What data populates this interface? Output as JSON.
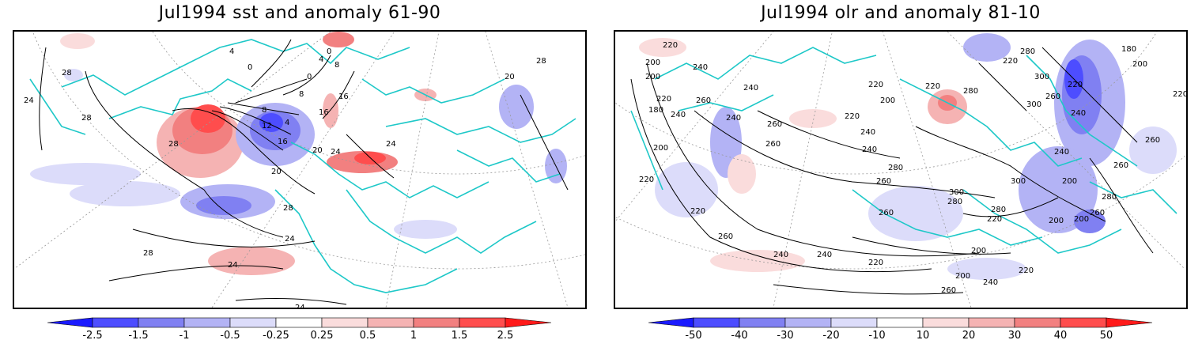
{
  "panels": {
    "left": {
      "title": "Jul1994 sst and anomaly 61-90",
      "contour_labels": [
        "28",
        "24",
        "28",
        "28",
        "8",
        "12",
        "16",
        "20",
        "20",
        "24",
        "24",
        "16",
        "16",
        "8",
        "8",
        "4",
        "4",
        "0",
        "0",
        "0",
        "4",
        "20",
        "28",
        "24",
        "28",
        "24",
        "28",
        "24"
      ],
      "colorbar": {
        "ticks": [
          "-2.5",
          "-1.5",
          "-1",
          "-0.5",
          "-0.25",
          "0.25",
          "0.5",
          "1",
          "1.5",
          "2.5"
        ],
        "colors": [
          "#1a1aff",
          "#4d4dff",
          "#8080f2",
          "#b3b3f5",
          "#dcdcfa",
          "#ffffff",
          "#fadcdc",
          "#f5b3b3",
          "#f28080",
          "#ff4d4d",
          "#ff1a1a"
        ]
      }
    },
    "right": {
      "title": "Jul1994 olr and anomaly 81-10",
      "contour_labels": [
        "220",
        "240",
        "200",
        "200",
        "220",
        "180",
        "240",
        "260",
        "240",
        "220",
        "260",
        "240",
        "200",
        "220",
        "280",
        "300",
        "220",
        "280",
        "260",
        "300",
        "180",
        "200",
        "220",
        "240",
        "260",
        "220",
        "220",
        "240",
        "260",
        "240",
        "280",
        "260",
        "280",
        "300",
        "300",
        "280",
        "200",
        "260",
        "240",
        "220",
        "260",
        "280",
        "200",
        "200",
        "240",
        "220",
        "200",
        "240",
        "260",
        "220",
        "240",
        "260",
        "220",
        "220",
        "200",
        "200",
        "260"
      ],
      "colorbar": {
        "ticks": [
          "-50",
          "-40",
          "-30",
          "-20",
          "-10",
          "10",
          "20",
          "30",
          "40",
          "50"
        ],
        "colors": [
          "#1a1aff",
          "#4d4dff",
          "#8080f2",
          "#b3b3f5",
          "#dcdcfa",
          "#ffffff",
          "#fadcdc",
          "#f5b3b3",
          "#f28080",
          "#ff4d4d",
          "#ff1a1a"
        ]
      }
    }
  },
  "colors": {
    "coastline": "#1ec8c8",
    "contour": "#000000",
    "gridline": "#999999"
  }
}
